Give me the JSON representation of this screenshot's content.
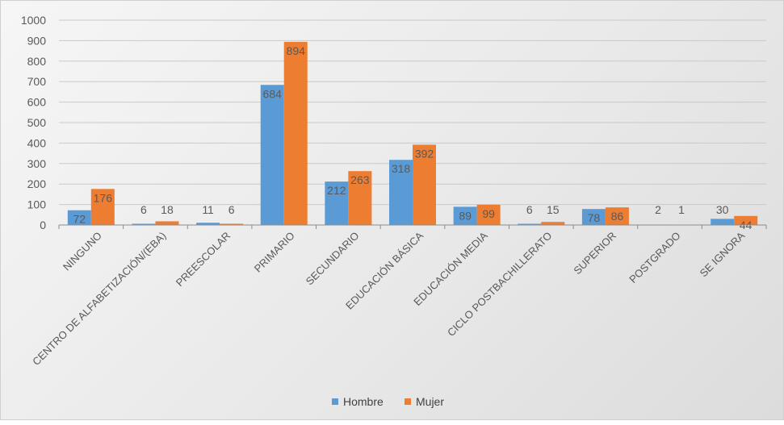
{
  "chart_data": {
    "type": "bar",
    "title": "",
    "xlabel": "",
    "ylabel": "",
    "ylim": [
      0,
      1000
    ],
    "yticks": [
      0,
      100,
      200,
      300,
      400,
      500,
      600,
      700,
      800,
      900,
      1000
    ],
    "grid": true,
    "legend_position": "bottom",
    "categories": [
      "NINGUNO",
      "CENTRO DE ALFABETIZACIÓN/(EBA)",
      "PREESCOLAR",
      "PRIMARIO",
      "SECUNDARIO",
      "EDUCACIÓN BÁSICA",
      "EDUCACIÓN MEDIA",
      "CICLO POSTBACHILLERATO",
      "SUPERIOR",
      "POSTGRADO",
      "SE IGNORA"
    ],
    "series": [
      {
        "name": "Hombre",
        "color": "#5B9BD5",
        "values": [
          72,
          6,
          11,
          684,
          212,
          318,
          89,
          6,
          78,
          2,
          30
        ]
      },
      {
        "name": "Mujer",
        "color": "#ED7D31",
        "values": [
          176,
          18,
          6,
          894,
          263,
          392,
          99,
          15,
          86,
          1,
          44
        ]
      }
    ]
  }
}
